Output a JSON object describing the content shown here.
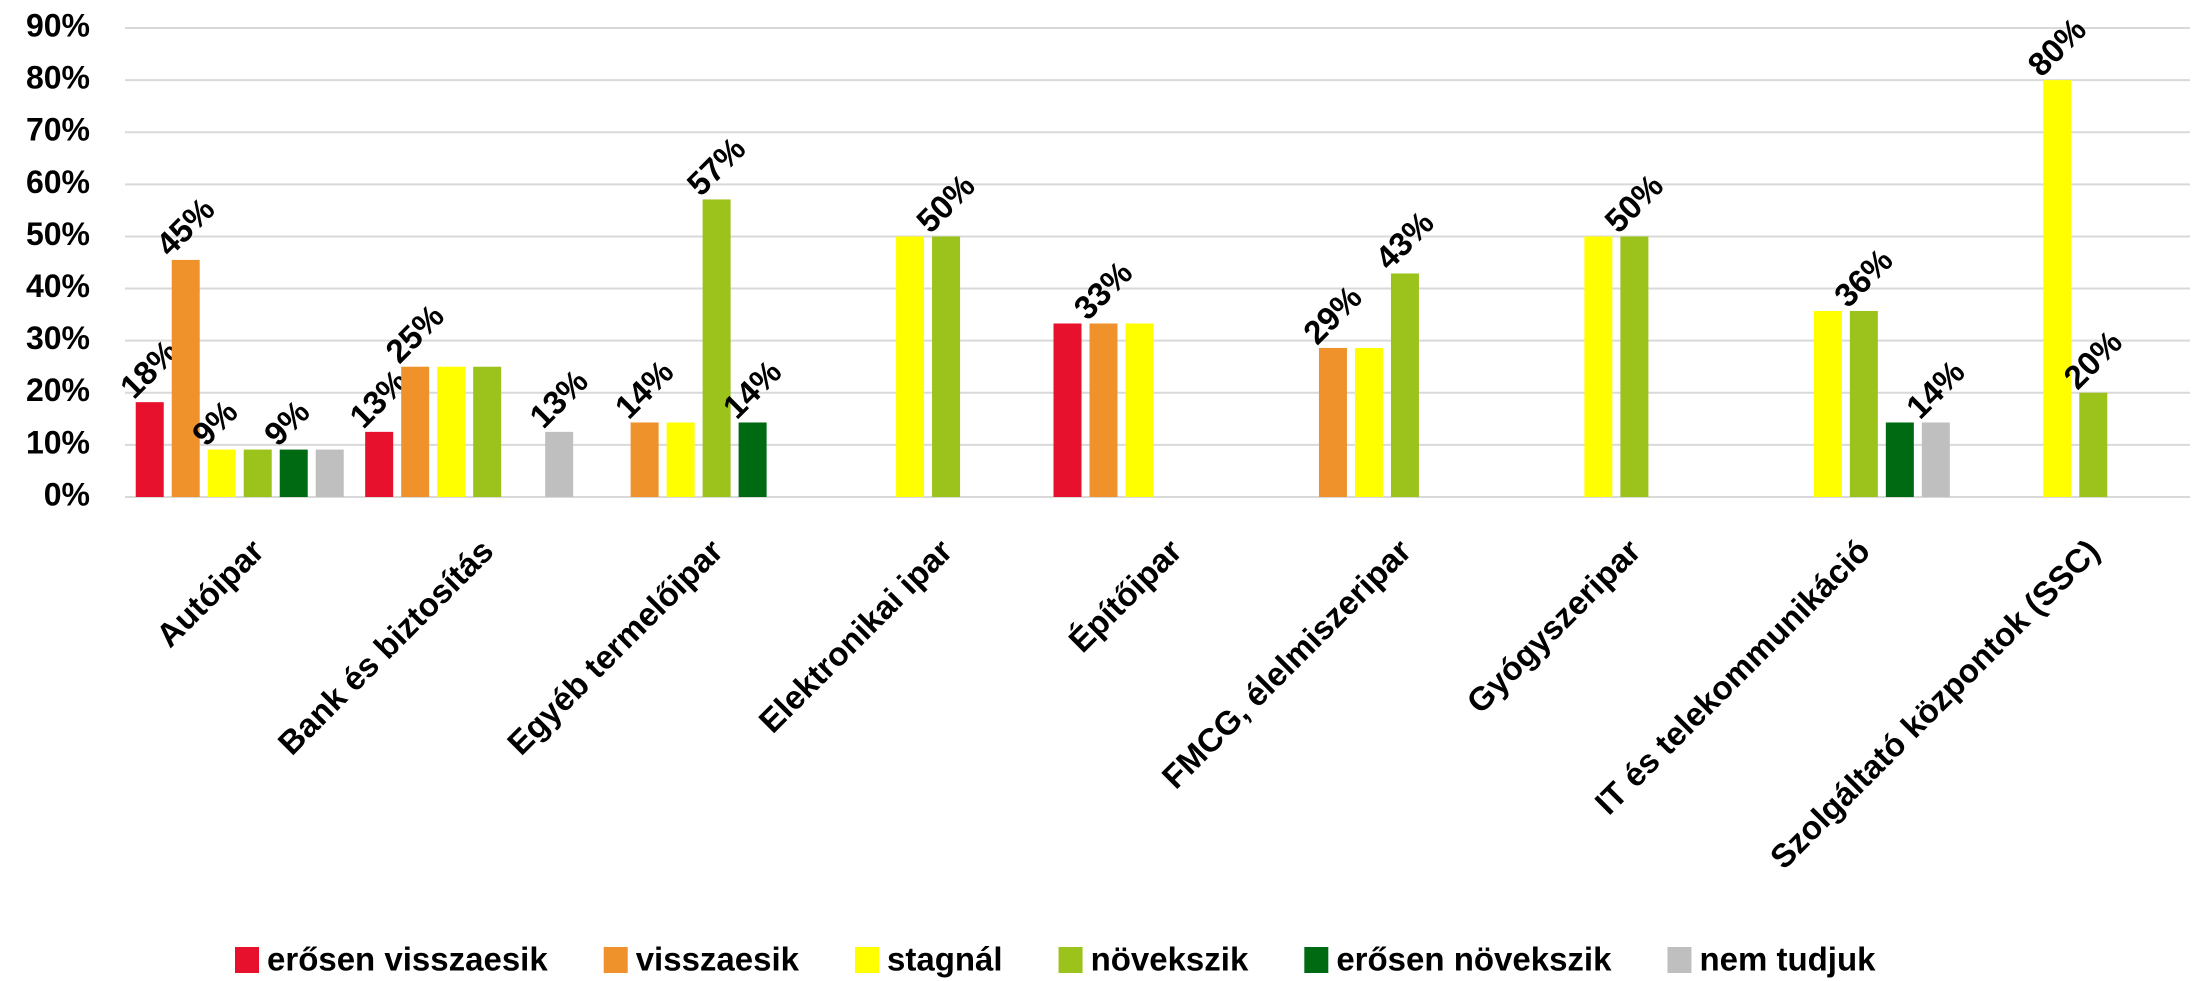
{
  "chart_data": {
    "type": "bar",
    "categories": [
      "Autóipar",
      "Bank és biztosítás",
      "Egyéb termelőipar",
      "Elektronikai ipar",
      "Építőipar",
      "FMCG, élelmiszeripar",
      "Gyógyszeripar",
      "IT és telekommunikáció",
      "Szolgáltató központok (SSC)"
    ],
    "series": [
      {
        "name": "erősen visszaesik",
        "color": "#e8112d",
        "values": [
          18.2,
          12.5,
          null,
          null,
          33.3,
          null,
          null,
          null,
          null
        ],
        "value_labels": [
          "18%",
          "13%",
          null,
          null,
          null,
          null,
          null,
          null,
          null
        ]
      },
      {
        "name": "visszaesik",
        "color": "#f0922b",
        "values": [
          45.5,
          25,
          14.3,
          null,
          33.3,
          28.6,
          null,
          null,
          null
        ],
        "value_labels": [
          "45%",
          "25%",
          "14%",
          null,
          "33%",
          "29%",
          null,
          null,
          null
        ]
      },
      {
        "name": "stagnál",
        "color": "#ffff00",
        "values": [
          9.1,
          25,
          14.3,
          50,
          33.3,
          28.6,
          50,
          35.7,
          80
        ],
        "value_labels": [
          "9%",
          null,
          null,
          null,
          null,
          null,
          null,
          null,
          "80%"
        ]
      },
      {
        "name": "növekszik",
        "color": "#9bc31b",
        "values": [
          9.1,
          25,
          57.1,
          50,
          null,
          42.9,
          50,
          35.7,
          20
        ],
        "value_labels": [
          null,
          null,
          "57%",
          "50%",
          null,
          "43%",
          "50%",
          "36%",
          "20%"
        ]
      },
      {
        "name": "erősen növekszik",
        "color": "#006a13",
        "values": [
          9.1,
          null,
          14.3,
          null,
          null,
          null,
          null,
          14.3,
          null
        ],
        "value_labels": [
          "9%",
          null,
          "14%",
          null,
          null,
          null,
          null,
          null,
          null
        ]
      },
      {
        "name": "nem tudjuk",
        "color": "#bfbfbf",
        "values": [
          9.1,
          12.5,
          null,
          null,
          null,
          null,
          null,
          14.3,
          null
        ],
        "value_labels": [
          null,
          "13%",
          null,
          null,
          null,
          null,
          null,
          "14%",
          null
        ]
      }
    ],
    "ylim": [
      0,
      90
    ],
    "yticks": [
      {
        "value": 0,
        "label": "0%"
      },
      {
        "value": 10,
        "label": "10%"
      },
      {
        "value": 20,
        "label": "20%"
      },
      {
        "value": 30,
        "label": "30%"
      },
      {
        "value": 40,
        "label": "40%"
      },
      {
        "value": 50,
        "label": "50%"
      },
      {
        "value": 60,
        "label": "60%"
      },
      {
        "value": 70,
        "label": "70%"
      },
      {
        "value": 80,
        "label": "80%"
      },
      {
        "value": 90,
        "label": "90%"
      }
    ],
    "grid": true,
    "legend": "bottom"
  }
}
